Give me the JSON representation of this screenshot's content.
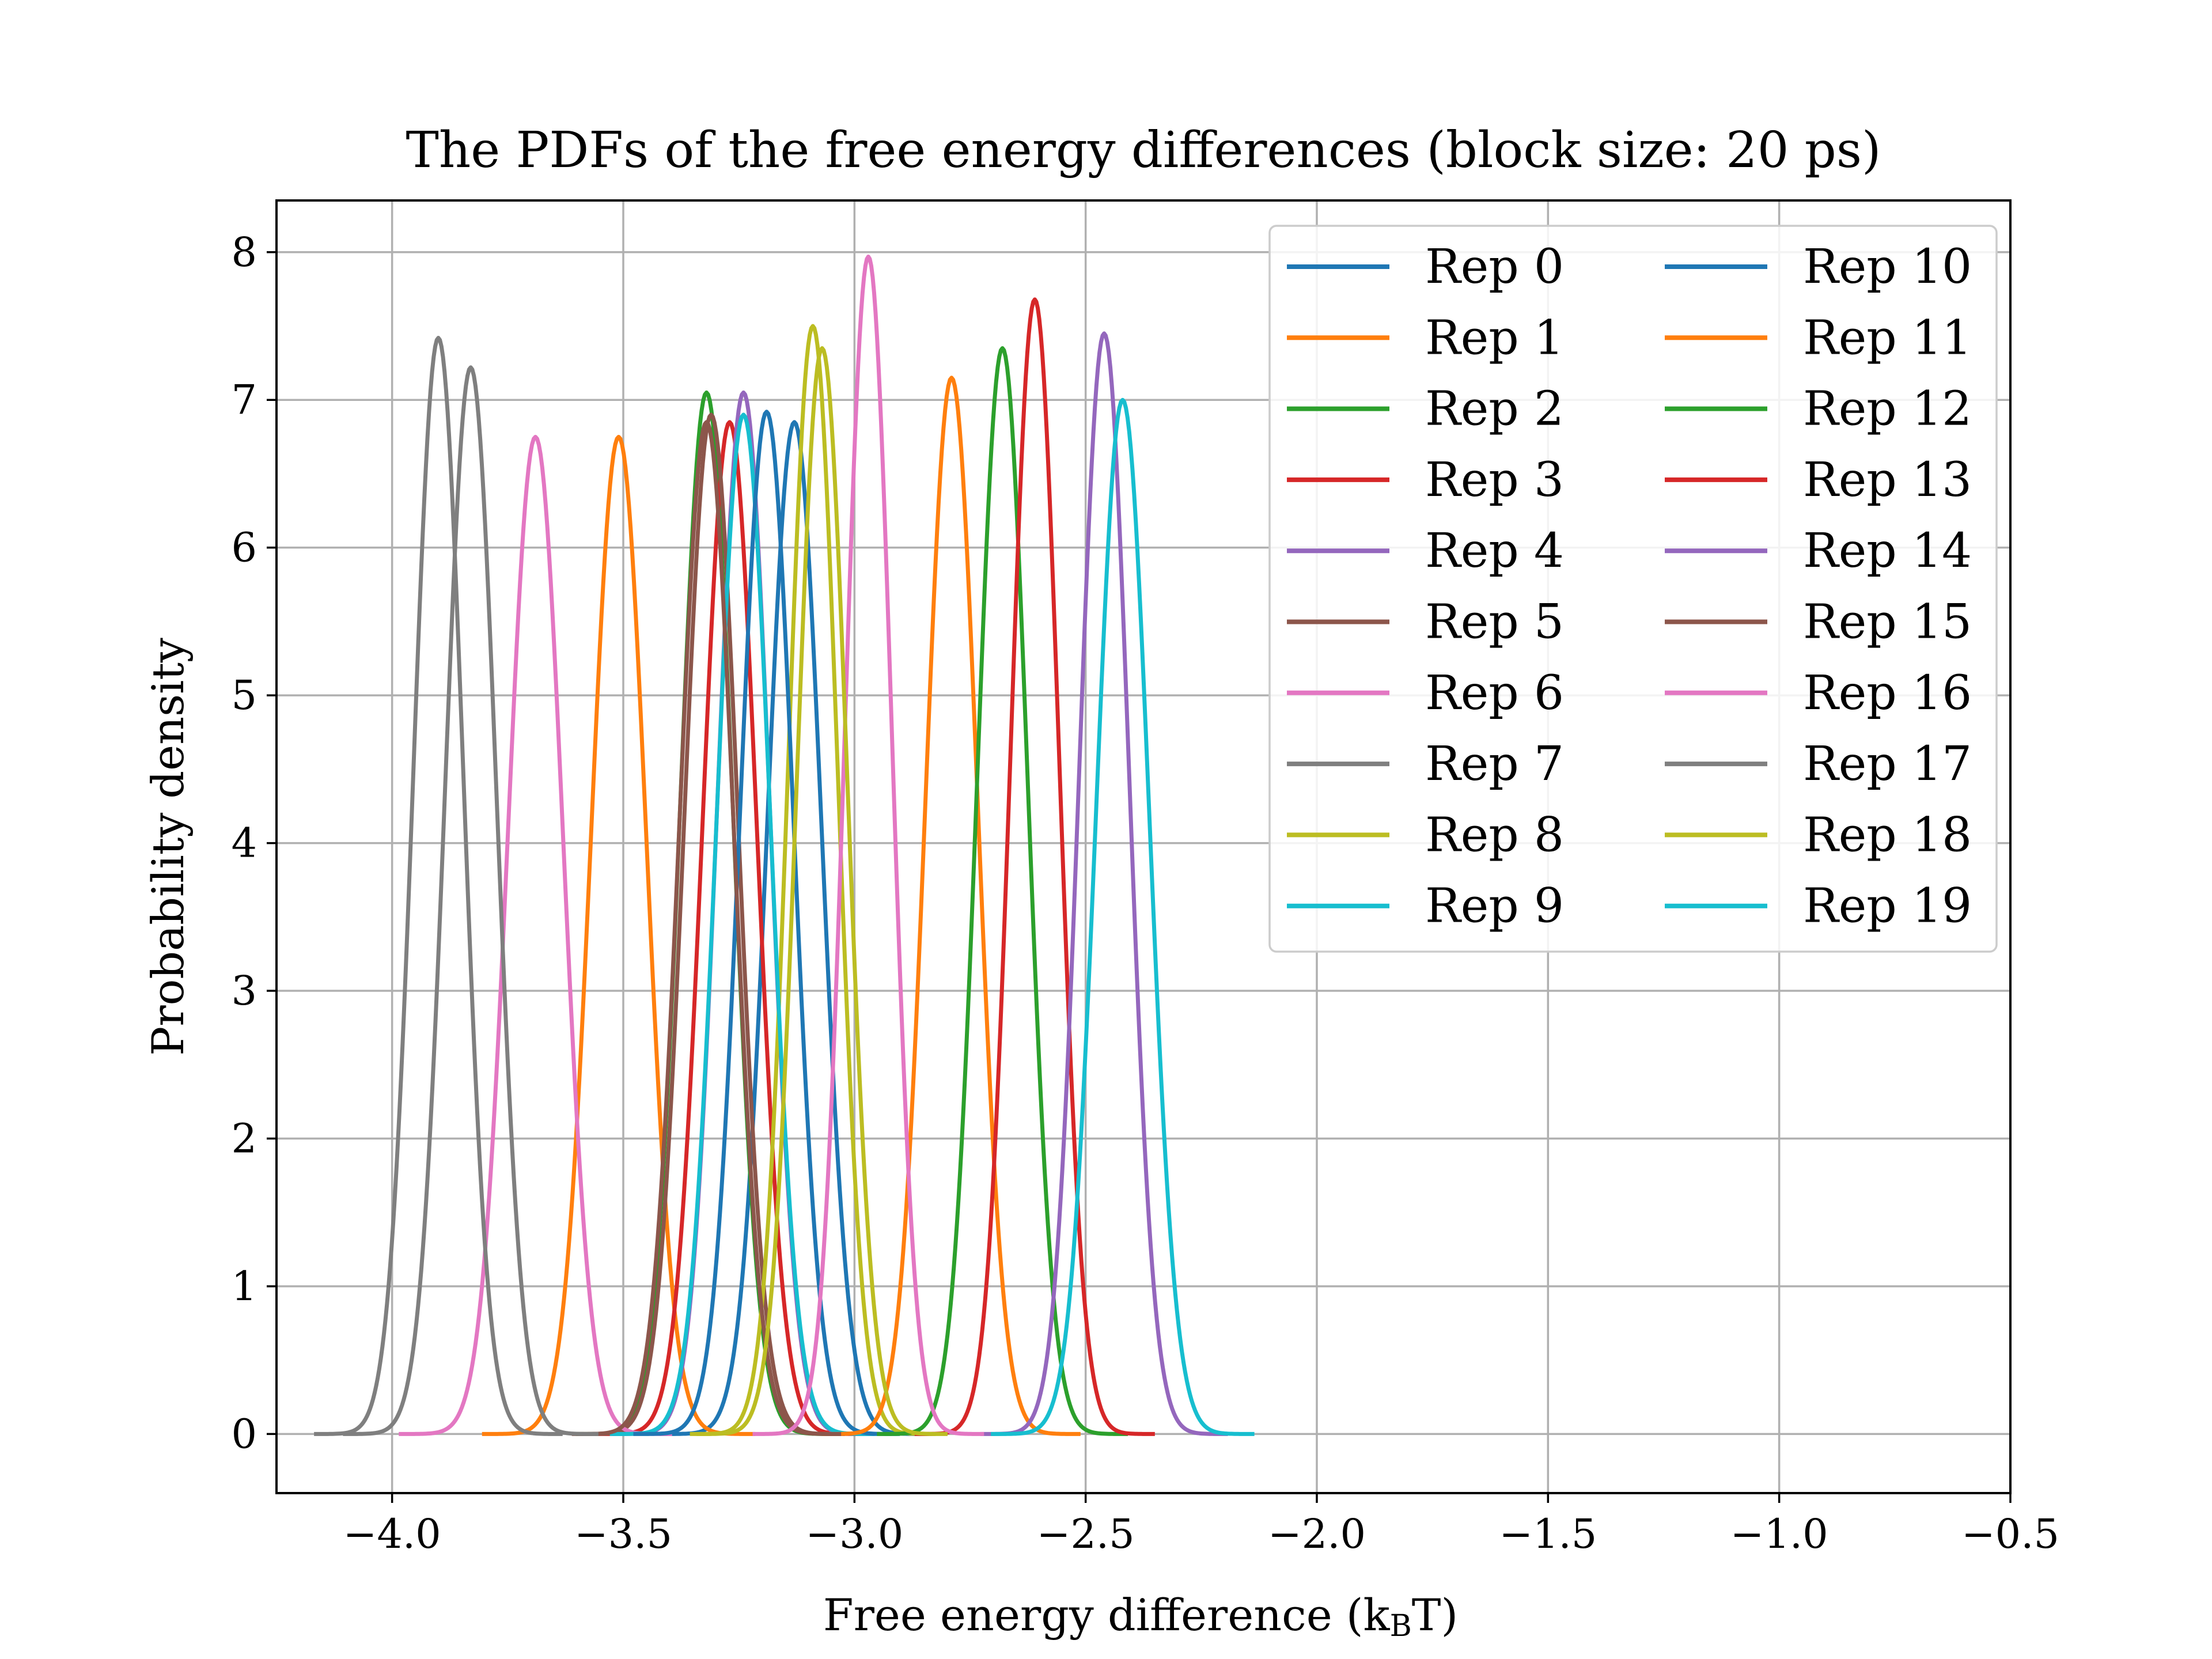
{
  "chart_data": {
    "type": "line",
    "title": "The PDFs of the free energy differences (block size: 20 ps)",
    "xlabel_main": "Free energy difference (k",
    "xlabel_sub": "B",
    "xlabel_end": "T)",
    "ylabel": "Probability density",
    "xlim": [
      -4.25,
      -0.5
    ],
    "ylim": [
      -0.4,
      8.35
    ],
    "xticks": [
      -4.0,
      -3.5,
      -3.0,
      -2.5,
      -2.0,
      -1.5,
      -1.0,
      -0.5
    ],
    "xtick_labels": [
      "−4.0",
      "−3.5",
      "−3.0",
      "−2.5",
      "−2.0",
      "−1.5",
      "−1.0",
      "−0.5"
    ],
    "yticks": [
      0,
      1,
      2,
      3,
      4,
      5,
      6,
      7,
      8
    ],
    "ytick_labels": [
      "0",
      "1",
      "2",
      "3",
      "4",
      "5",
      "6",
      "7",
      "8"
    ],
    "grid": true,
    "legend": {
      "location": "upper right",
      "columns": 2
    },
    "series": [
      {
        "name": "Rep 0",
        "color": "#1f77b4",
        "mean": -3.13,
        "peak": 6.85
      },
      {
        "name": "Rep 1",
        "color": "#ff7f0e",
        "mean": -3.51,
        "peak": 6.75
      },
      {
        "name": "Rep 2",
        "color": "#2ca02c",
        "mean": -3.32,
        "peak": 7.05
      },
      {
        "name": "Rep 3",
        "color": "#d62728",
        "mean": -3.27,
        "peak": 6.85
      },
      {
        "name": "Rep 4",
        "color": "#9467bd",
        "mean": -3.24,
        "peak": 7.05
      },
      {
        "name": "Rep 5",
        "color": "#8c564b",
        "mean": -3.31,
        "peak": 6.9
      },
      {
        "name": "Rep 6",
        "color": "#e377c2",
        "mean": -3.69,
        "peak": 6.75
      },
      {
        "name": "Rep 7",
        "color": "#7f7f7f",
        "mean": -3.9,
        "peak": 7.42
      },
      {
        "name": "Rep 8",
        "color": "#bcbd22",
        "mean": -3.09,
        "peak": 7.5
      },
      {
        "name": "Rep 9",
        "color": "#17becf",
        "mean": -3.24,
        "peak": 6.9
      },
      {
        "name": "Rep 10",
        "color": "#1f77b4",
        "mean": -3.19,
        "peak": 6.92
      },
      {
        "name": "Rep 11",
        "color": "#ff7f0e",
        "mean": -2.79,
        "peak": 7.15
      },
      {
        "name": "Rep 12",
        "color": "#2ca02c",
        "mean": -2.68,
        "peak": 7.35
      },
      {
        "name": "Rep 13",
        "color": "#d62728",
        "mean": -2.61,
        "peak": 7.68
      },
      {
        "name": "Rep 14",
        "color": "#9467bd",
        "mean": -2.46,
        "peak": 7.45
      },
      {
        "name": "Rep 15",
        "color": "#8c564b",
        "mean": -3.32,
        "peak": 6.85
      },
      {
        "name": "Rep 16",
        "color": "#e377c2",
        "mean": -2.97,
        "peak": 7.97
      },
      {
        "name": "Rep 17",
        "color": "#7f7f7f",
        "mean": -3.83,
        "peak": 7.22
      },
      {
        "name": "Rep 18",
        "color": "#bcbd22",
        "mean": -3.07,
        "peak": 7.35
      },
      {
        "name": "Rep 19",
        "color": "#17becf",
        "mean": -2.42,
        "peak": 7.0
      }
    ]
  }
}
